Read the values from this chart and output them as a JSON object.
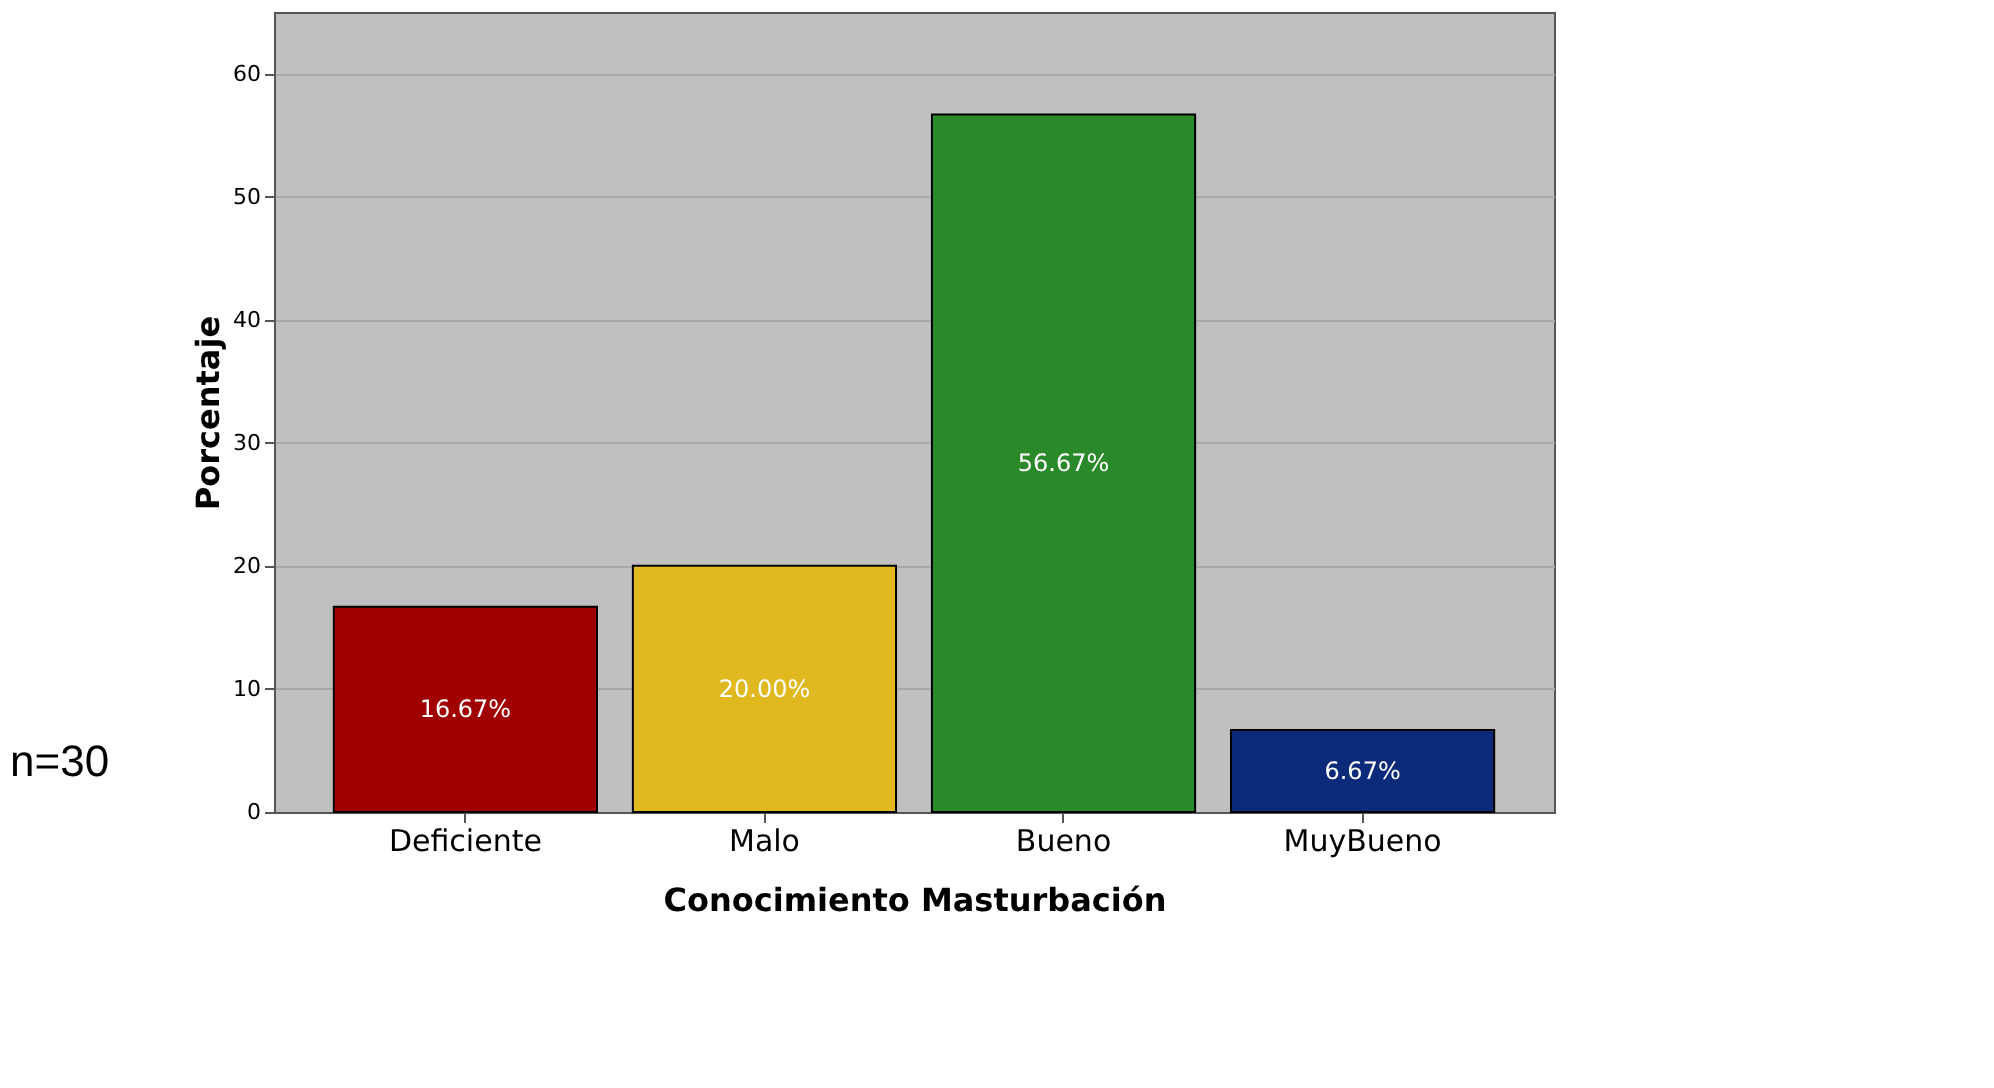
{
  "chart_data": {
    "type": "bar",
    "xlabel": "Conocimiento Masturbación",
    "ylabel": "Porcentaje",
    "categories": [
      "Deficiente",
      "Malo",
      "Bueno",
      "MuyBueno"
    ],
    "values": [
      16.67,
      20.0,
      56.67,
      6.67
    ],
    "colors": [
      "#a00000",
      "#e0b820",
      "#2a8a2a",
      "#0c2a7a"
    ],
    "value_labels": [
      "16.67%",
      "20.00%",
      "56.67%",
      "6.67%"
    ],
    "ylim": [
      0,
      65
    ],
    "yticks": [
      0,
      10,
      20,
      30,
      40,
      50,
      60
    ],
    "grid": "y",
    "annotations": [
      "n=30"
    ]
  }
}
